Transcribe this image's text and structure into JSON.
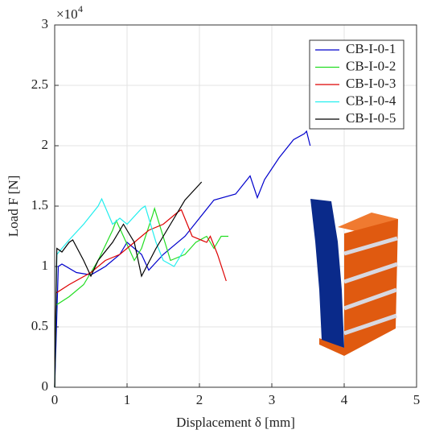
{
  "chart_data": {
    "type": "line",
    "xlabel": "Displacement δ [mm]",
    "ylabel": "Load F [N]",
    "y_multiplier": "×10",
    "y_multiplier_exponent": "4",
    "xlim": [
      0,
      5
    ],
    "xticks": [
      0,
      1,
      2,
      3,
      4,
      5
    ],
    "ylim": [
      0,
      3
    ],
    "yticks": [
      0,
      0.5,
      1,
      1.5,
      2,
      2.5,
      3
    ],
    "grid": true,
    "legend": "upper right",
    "series": [
      {
        "name": "CB-I-0-1",
        "color": "#0000cc",
        "x": [
          0,
          0.05,
          0.1,
          0.3,
          0.5,
          0.7,
          0.9,
          1.0,
          1.2,
          1.3,
          1.5,
          1.8,
          2.0,
          2.2,
          2.5,
          2.7,
          2.8,
          2.9,
          3.1,
          3.3,
          3.45,
          3.48,
          3.53
        ],
        "values": [
          0,
          1.0,
          1.02,
          0.95,
          0.93,
          1.0,
          1.1,
          1.2,
          1.1,
          0.97,
          1.1,
          1.25,
          1.4,
          1.55,
          1.6,
          1.75,
          1.57,
          1.72,
          1.9,
          2.05,
          2.1,
          2.12,
          2.0
        ]
      },
      {
        "name": "CB-I-0-2",
        "color": "#22dd22",
        "x": [
          0,
          0.02,
          0.2,
          0.4,
          0.6,
          0.8,
          0.85,
          0.95,
          1.1,
          1.2,
          1.35,
          1.38,
          1.6,
          1.8,
          1.95,
          2.1,
          2.2,
          2.3,
          2.4
        ],
        "values": [
          0,
          0.68,
          0.75,
          0.85,
          1.05,
          1.3,
          1.38,
          1.25,
          1.05,
          1.15,
          1.42,
          1.48,
          1.05,
          1.1,
          1.2,
          1.25,
          1.15,
          1.25,
          1.25
        ]
      },
      {
        "name": "CB-I-0-3",
        "color": "#dd0000",
        "x": [
          0,
          0.02,
          0.2,
          0.5,
          0.7,
          0.9,
          1.1,
          1.3,
          1.5,
          1.7,
          1.75,
          1.9,
          2.1,
          2.15,
          2.25,
          2.37
        ],
        "values": [
          0,
          0.78,
          0.85,
          0.95,
          1.05,
          1.1,
          1.2,
          1.3,
          1.35,
          1.45,
          1.47,
          1.25,
          1.2,
          1.25,
          1.1,
          0.88
        ]
      },
      {
        "name": "CB-I-0-4",
        "color": "#22eeee",
        "x": [
          0,
          0.03,
          0.2,
          0.4,
          0.6,
          0.65,
          0.8,
          0.9,
          1.0,
          1.2,
          1.25,
          1.4,
          1.5,
          1.65,
          1.75,
          1.8
        ],
        "values": [
          0,
          1.1,
          1.22,
          1.35,
          1.5,
          1.56,
          1.35,
          1.4,
          1.35,
          1.48,
          1.5,
          1.2,
          1.05,
          1.0,
          1.1,
          1.15
        ]
      },
      {
        "name": "CB-I-0-5",
        "color": "#000000",
        "x": [
          0,
          0.03,
          0.1,
          0.2,
          0.25,
          0.4,
          0.5,
          0.6,
          0.8,
          0.95,
          1.0,
          1.1,
          1.2,
          1.4,
          1.6,
          1.8,
          2.0,
          2.03
        ],
        "values": [
          0,
          1.15,
          1.12,
          1.2,
          1.22,
          1.05,
          0.92,
          1.05,
          1.2,
          1.35,
          1.3,
          1.2,
          0.92,
          1.15,
          1.35,
          1.55,
          1.68,
          1.7
        ]
      }
    ]
  }
}
